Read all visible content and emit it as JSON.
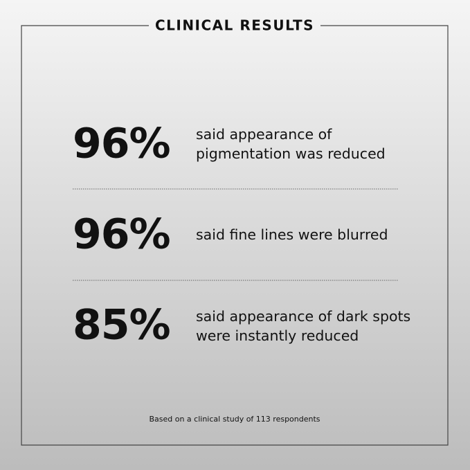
{
  "title": "CLINICAL RESULTS",
  "stats": [
    {
      "value": "96%",
      "lines": [
        "said appearance of",
        "pigmentation was reduced"
      ]
    },
    {
      "value": "96%",
      "lines": [
        "said fine lines were blurred"
      ]
    },
    {
      "value": "85%",
      "lines": [
        "said appearance of dark spots",
        "were instantly reduced"
      ]
    }
  ],
  "footnote": "Based on a clinical study of 113 respondents"
}
